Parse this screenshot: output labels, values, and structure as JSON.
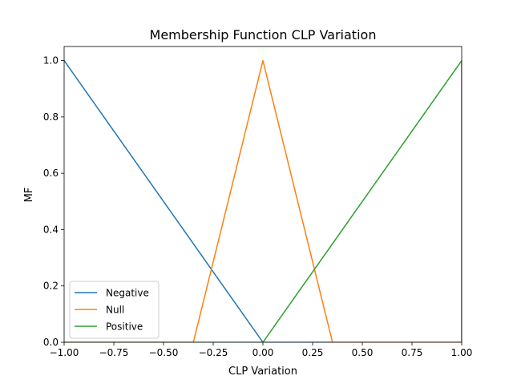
{
  "chart_data": {
    "type": "line",
    "title": "Membership Function CLP Variation",
    "xlabel": "CLP Variation",
    "ylabel": "MF",
    "xlim": [
      -1.0,
      1.0
    ],
    "ylim": [
      0.0,
      1.05
    ],
    "x_ticks": [
      -1.0,
      -0.75,
      -0.5,
      -0.25,
      0.0,
      0.25,
      0.5,
      0.75,
      1.0
    ],
    "x_tick_labels": [
      "−1.00",
      "−0.75",
      "−0.50",
      "−0.25",
      "0.00",
      "0.25",
      "0.50",
      "0.75",
      "1.00"
    ],
    "y_ticks": [
      0.0,
      0.2,
      0.4,
      0.6,
      0.8,
      1.0
    ],
    "y_tick_labels": [
      "0.0",
      "0.2",
      "0.4",
      "0.6",
      "0.8",
      "1.0"
    ],
    "grid": false,
    "legend_position": "lower-left",
    "series": [
      {
        "name": "Negative",
        "color": "#1f77b4",
        "x": [
          -1.0,
          0.0,
          1.0
        ],
        "y": [
          1.0,
          0.0,
          0.0
        ]
      },
      {
        "name": "Null",
        "color": "#ff7f0e",
        "x": [
          -1.0,
          -0.35,
          0.0,
          0.35,
          1.0
        ],
        "y": [
          0.0,
          0.0,
          1.0,
          0.0,
          0.0
        ]
      },
      {
        "name": "Positive",
        "color": "#2ca02c",
        "x": [
          -1.0,
          0.0,
          1.0,
          1.0
        ],
        "y": [
          0.0,
          0.0,
          1.0,
          0.0
        ]
      }
    ]
  }
}
